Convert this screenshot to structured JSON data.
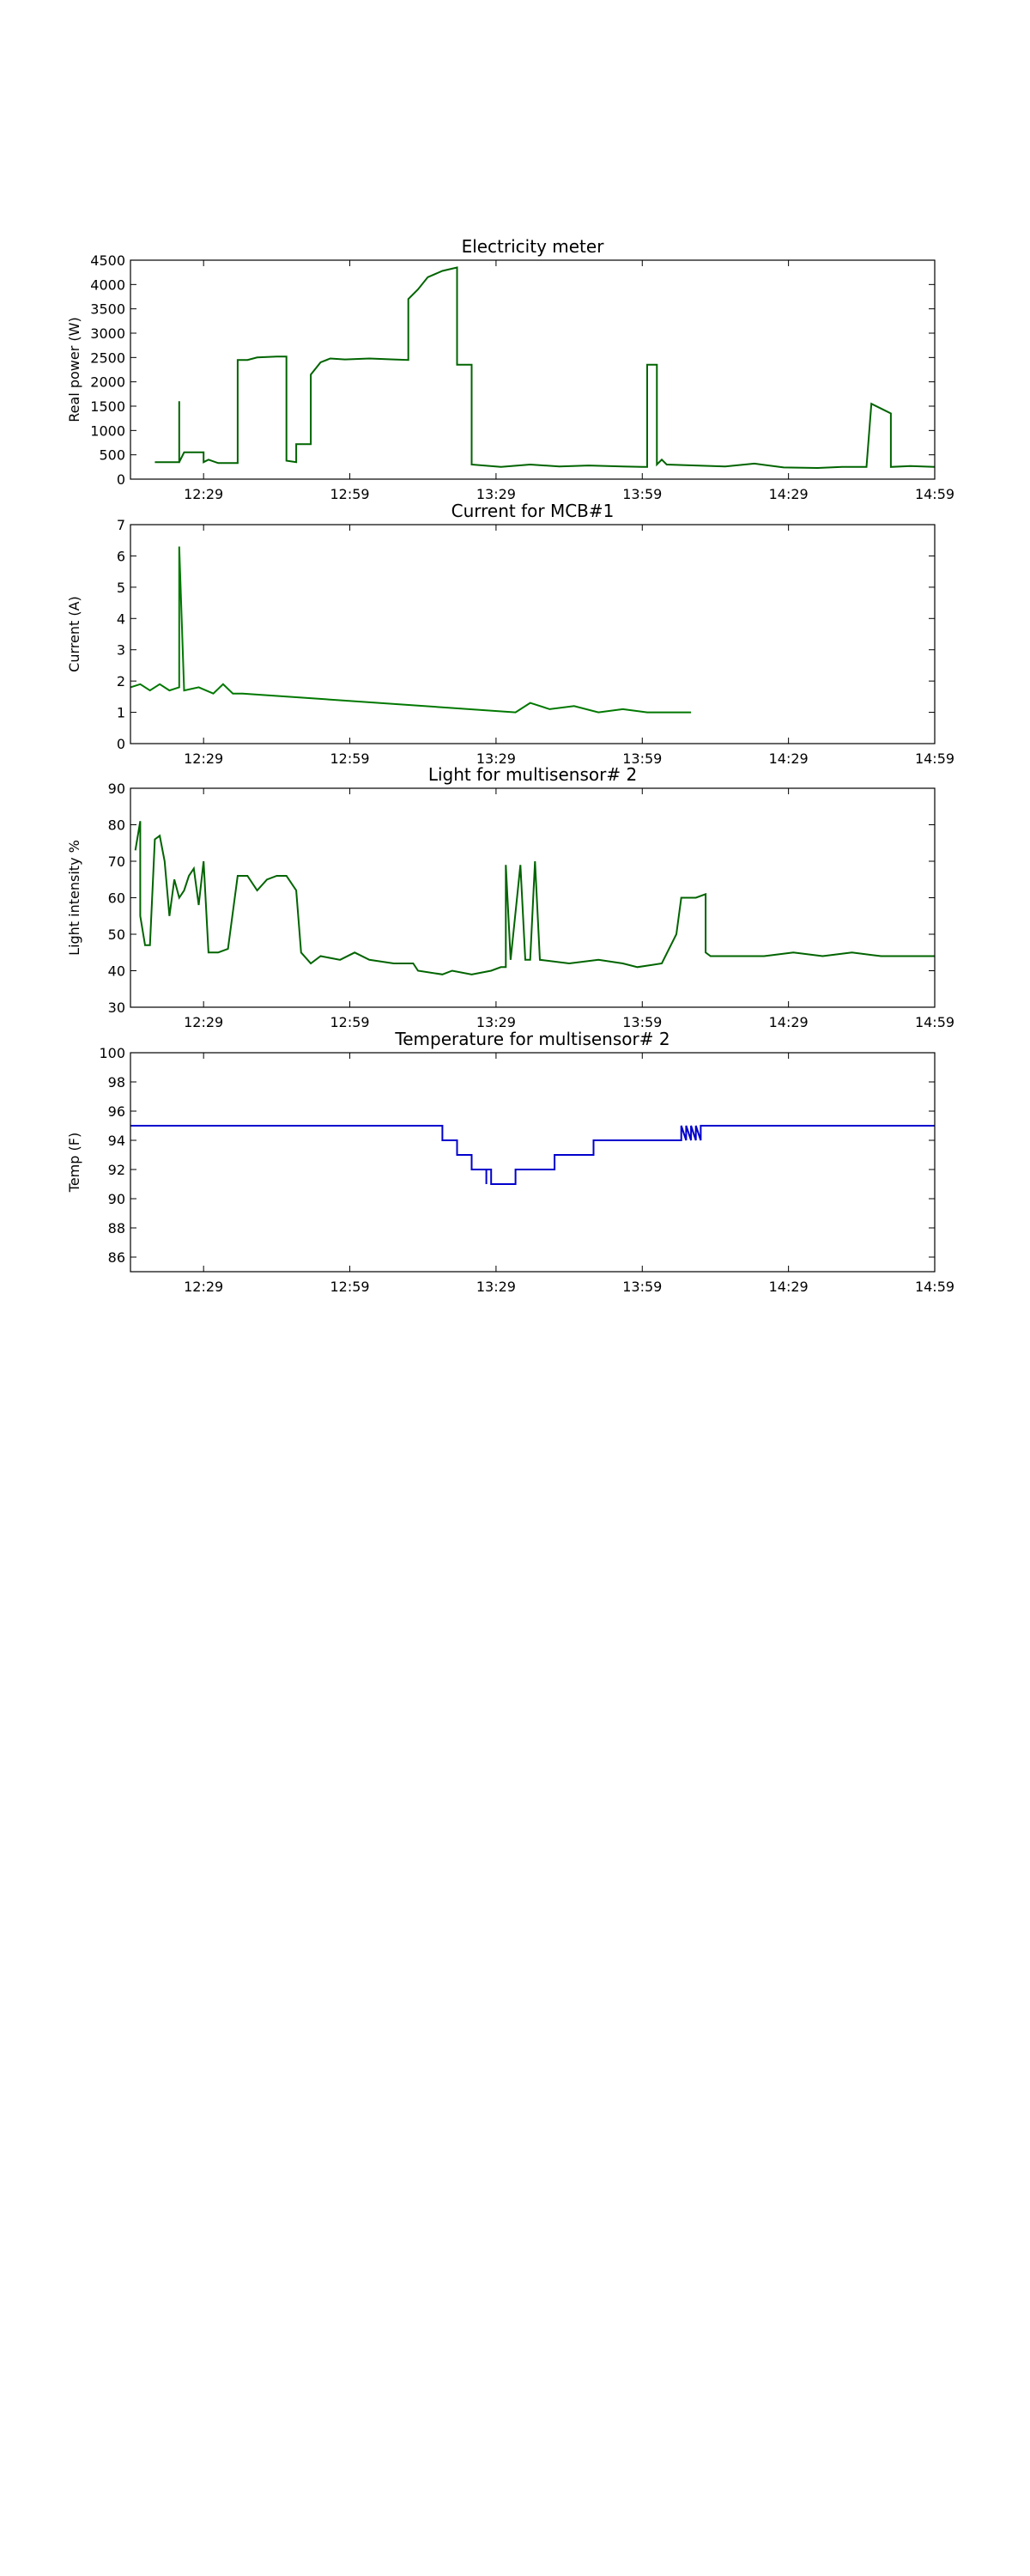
{
  "chart_data": [
    {
      "type": "line",
      "title": "Electricity meter",
      "xlabel": "",
      "ylabel": "Real power (W)",
      "xlim": [
        "12:14",
        "14:59"
      ],
      "ylim": [
        0,
        4500
      ],
      "xticks": [
        "12:29",
        "12:59",
        "13:29",
        "13:59",
        "14:29",
        "14:59"
      ],
      "yticks": [
        0,
        500,
        1000,
        1500,
        2000,
        2500,
        3000,
        3500,
        4000,
        4500
      ],
      "grid": false,
      "series": [
        {
          "color": "#006400",
          "points": [
            [
              "12:19",
              350
            ],
            [
              "12:24",
              350
            ],
            [
              "12:24",
              1600
            ],
            [
              "12:24",
              350
            ],
            [
              "12:25",
              550
            ],
            [
              "12:29",
              550
            ],
            [
              "12:29",
              350
            ],
            [
              "12:30",
              400
            ],
            [
              "12:32",
              330
            ],
            [
              "12:36",
              330
            ],
            [
              "12:36",
              2450
            ],
            [
              "12:38",
              2450
            ],
            [
              "12:40",
              2500
            ],
            [
              "12:44",
              2520
            ],
            [
              "12:46",
              2520
            ],
            [
              "12:46",
              380
            ],
            [
              "12:48",
              350
            ],
            [
              "12:48",
              720
            ],
            [
              "12:51",
              720
            ],
            [
              "12:51",
              2150
            ],
            [
              "12:53",
              2400
            ],
            [
              "12:55",
              2480
            ],
            [
              "12:58",
              2460
            ],
            [
              "13:03",
              2480
            ],
            [
              "13:08",
              2460
            ],
            [
              "13:11",
              2450
            ],
            [
              "13:11",
              3700
            ],
            [
              "13:13",
              3900
            ],
            [
              "13:15",
              4150
            ],
            [
              "13:18",
              4280
            ],
            [
              "13:21",
              4350
            ],
            [
              "13:21",
              2350
            ],
            [
              "13:24",
              2350
            ],
            [
              "13:24",
              300
            ],
            [
              "13:30",
              250
            ],
            [
              "13:36",
              300
            ],
            [
              "13:42",
              260
            ],
            [
              "13:48",
              280
            ],
            [
              "13:55",
              260
            ],
            [
              "13:59",
              250
            ],
            [
              "14:00",
              250
            ],
            [
              "14:00",
              2350
            ],
            [
              "14:02",
              2350
            ],
            [
              "14:02",
              300
            ],
            [
              "14:03",
              400
            ],
            [
              "14:04",
              300
            ],
            [
              "14:10",
              280
            ],
            [
              "14:16",
              260
            ],
            [
              "14:22",
              320
            ],
            [
              "14:28",
              240
            ],
            [
              "14:35",
              230
            ],
            [
              "14:40",
              250
            ],
            [
              "14:45",
              250
            ],
            [
              "14:46",
              1550
            ],
            [
              "14:48",
              1450
            ],
            [
              "14:50",
              1350
            ],
            [
              "14:50",
              250
            ],
            [
              "14:54",
              270
            ],
            [
              "14:59",
              250
            ]
          ]
        }
      ]
    },
    {
      "type": "line",
      "title": "Current for MCB#1",
      "xlabel": "",
      "ylabel": "Current (A)",
      "xlim": [
        "12:14",
        "14:59"
      ],
      "ylim": [
        0,
        7
      ],
      "xticks": [
        "12:29",
        "12:59",
        "13:29",
        "13:59",
        "14:29",
        "14:59"
      ],
      "yticks": [
        0,
        1,
        2,
        3,
        4,
        5,
        6,
        7
      ],
      "grid": false,
      "series": [
        {
          "color": "#007800",
          "points": [
            [
              "12:14",
              1.8
            ],
            [
              "12:16",
              1.9
            ],
            [
              "12:18",
              1.7
            ],
            [
              "12:20",
              1.9
            ],
            [
              "12:22",
              1.7
            ],
            [
              "12:24",
              1.8
            ],
            [
              "12:24",
              6.3
            ],
            [
              "12:25",
              1.7
            ],
            [
              "12:28",
              1.8
            ],
            [
              "12:31",
              1.6
            ],
            [
              "12:33",
              1.9
            ],
            [
              "12:35",
              1.6
            ],
            [
              "12:37",
              1.6
            ],
            [
              "13:33",
              1.0
            ],
            [
              "13:36",
              1.3
            ],
            [
              "13:40",
              1.1
            ],
            [
              "13:45",
              1.2
            ],
            [
              "13:50",
              1.0
            ],
            [
              "13:55",
              1.1
            ],
            [
              "14:00",
              1.0
            ],
            [
              "14:05",
              1.0
            ],
            [
              "14:09",
              1.0
            ]
          ]
        }
      ]
    },
    {
      "type": "line",
      "title": "Light for multisensor# 2",
      "xlabel": "",
      "ylabel": "Light intensity %",
      "xlim": [
        "12:14",
        "14:59"
      ],
      "ylim": [
        30,
        90
      ],
      "xticks": [
        "12:29",
        "12:59",
        "13:29",
        "13:59",
        "14:29",
        "14:59"
      ],
      "yticks": [
        30,
        40,
        50,
        60,
        70,
        80,
        90
      ],
      "grid": false,
      "series": [
        {
          "color": "#006400",
          "points": [
            [
              "12:15",
              73
            ],
            [
              "12:16",
              81
            ],
            [
              "12:16",
              55
            ],
            [
              "12:17",
              47
            ],
            [
              "12:18",
              47
            ],
            [
              "12:19",
              76
            ],
            [
              "12:20",
              77
            ],
            [
              "12:21",
              70
            ],
            [
              "12:22",
              55
            ],
            [
              "12:23",
              65
            ],
            [
              "12:24",
              60
            ],
            [
              "12:25",
              62
            ],
            [
              "12:26",
              66
            ],
            [
              "12:27",
              68
            ],
            [
              "12:28",
              58
            ],
            [
              "12:29",
              70
            ],
            [
              "12:30",
              45
            ],
            [
              "12:32",
              45
            ],
            [
              "12:34",
              46
            ],
            [
              "12:36",
              66
            ],
            [
              "12:38",
              66
            ],
            [
              "12:40",
              62
            ],
            [
              "12:42",
              65
            ],
            [
              "12:44",
              66
            ],
            [
              "12:46",
              66
            ],
            [
              "12:48",
              62
            ],
            [
              "12:49",
              45
            ],
            [
              "12:51",
              42
            ],
            [
              "12:53",
              44
            ],
            [
              "12:57",
              43
            ],
            [
              "13:00",
              45
            ],
            [
              "13:03",
              43
            ],
            [
              "13:08",
              42
            ],
            [
              "13:12",
              42
            ],
            [
              "13:13",
              40
            ],
            [
              "13:18",
              39
            ],
            [
              "13:20",
              40
            ],
            [
              "13:24",
              39
            ],
            [
              "13:28",
              40
            ],
            [
              "13:30",
              41
            ],
            [
              "13:31",
              41
            ],
            [
              "13:31",
              69
            ],
            [
              "13:32",
              43
            ],
            [
              "13:34",
              69
            ],
            [
              "13:35",
              43
            ],
            [
              "13:36",
              43
            ],
            [
              "13:37",
              70
            ],
            [
              "13:38",
              43
            ],
            [
              "13:44",
              42
            ],
            [
              "13:50",
              43
            ],
            [
              "13:55",
              42
            ],
            [
              "13:58",
              41
            ],
            [
              "14:03",
              42
            ],
            [
              "14:06",
              50
            ],
            [
              "14:07",
              60
            ],
            [
              "14:10",
              60
            ],
            [
              "14:12",
              61
            ],
            [
              "14:12",
              45
            ],
            [
              "14:13",
              44
            ],
            [
              "14:18",
              44
            ],
            [
              "14:24",
              44
            ],
            [
              "14:30",
              45
            ],
            [
              "14:36",
              44
            ],
            [
              "14:42",
              45
            ],
            [
              "14:48",
              44
            ],
            [
              "14:54",
              44
            ],
            [
              "14:59",
              44
            ]
          ]
        }
      ]
    },
    {
      "type": "line",
      "title": "Temperature for multisensor# 2",
      "xlabel": "",
      "ylabel": "Temp (F)",
      "xlim": [
        "12:14",
        "14:59"
      ],
      "ylim": [
        85,
        100
      ],
      "xticks": [
        "12:29",
        "12:59",
        "13:29",
        "13:59",
        "14:29",
        "14:59"
      ],
      "yticks": [
        86,
        88,
        90,
        92,
        94,
        96,
        98,
        100
      ],
      "grid": false,
      "series": [
        {
          "color": "#0000cd",
          "points": [
            [
              "12:14",
              95
            ],
            [
              "13:18",
              95
            ],
            [
              "13:18",
              94
            ],
            [
              "13:21",
              94
            ],
            [
              "13:21",
              93
            ],
            [
              "13:24",
              93
            ],
            [
              "13:24",
              92
            ],
            [
              "13:27",
              92
            ],
            [
              "13:27",
              91
            ],
            [
              "13:27",
              92
            ],
            [
              "13:28",
              92
            ],
            [
              "13:28",
              91
            ],
            [
              "13:33",
              91
            ],
            [
              "13:33",
              92
            ],
            [
              "13:41",
              92
            ],
            [
              "13:41",
              93
            ],
            [
              "13:49",
              93
            ],
            [
              "13:49",
              94
            ],
            [
              "14:07",
              94
            ],
            [
              "14:07",
              95
            ],
            [
              "14:08",
              94
            ],
            [
              "14:08",
              95
            ],
            [
              "14:09",
              94
            ],
            [
              "14:09",
              95
            ],
            [
              "14:10",
              94
            ],
            [
              "14:10",
              95
            ],
            [
              "14:11",
              94
            ],
            [
              "14:11",
              95
            ],
            [
              "14:59",
              95
            ]
          ]
        }
      ]
    }
  ]
}
